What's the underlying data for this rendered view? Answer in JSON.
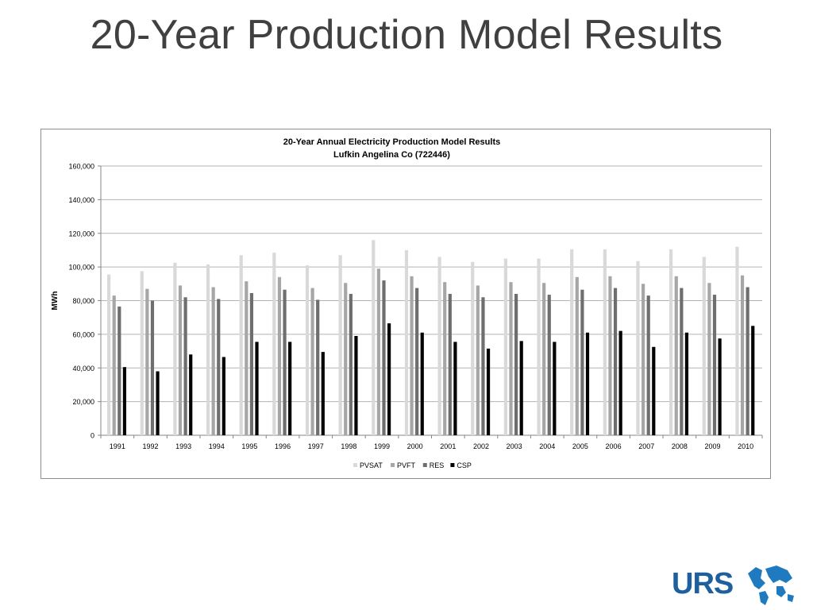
{
  "slide": {
    "title": "20-Year Production Model Results"
  },
  "logo": {
    "text": "URS",
    "color": "#1f5f9e"
  },
  "chart_data": {
    "type": "bar",
    "title": "20-Year Annual Electricity Production Model Results",
    "subtitle": "Lufkin Angelina Co (722446)",
    "xlabel": "",
    "ylabel": "MWh",
    "ylim": [
      0,
      160000
    ],
    "yticks": [
      0,
      20000,
      40000,
      60000,
      80000,
      100000,
      120000,
      140000,
      160000
    ],
    "ytick_labels": [
      "0",
      "20,000",
      "40,000",
      "60,000",
      "80,000",
      "100,000",
      "120,000",
      "140,000",
      "160,000"
    ],
    "grid": true,
    "legend_position": "bottom",
    "categories": [
      "1991",
      "1992",
      "1993",
      "1994",
      "1995",
      "1996",
      "1997",
      "1998",
      "1999",
      "2000",
      "2001",
      "2002",
      "2003",
      "2004",
      "2005",
      "2006",
      "2007",
      "2008",
      "2009",
      "2010"
    ],
    "series": [
      {
        "name": "PVSAT",
        "color": "#d9d9d9",
        "values": [
          95500,
          97500,
          102500,
          101500,
          107000,
          108500,
          101000,
          107000,
          116000,
          110000,
          106000,
          103000,
          105000,
          105000,
          110500,
          110500,
          103500,
          110500,
          106000,
          112000
        ]
      },
      {
        "name": "PVFT",
        "color": "#a6a6a6",
        "values": [
          83000,
          87000,
          89000,
          88000,
          91500,
          94000,
          87500,
          90500,
          99000,
          94500,
          91000,
          89000,
          91000,
          90500,
          94000,
          94500,
          90000,
          94500,
          90500,
          95000
        ]
      },
      {
        "name": "RES",
        "color": "#6e6e6e",
        "values": [
          76500,
          80000,
          82000,
          81000,
          84500,
          86500,
          80500,
          84000,
          92000,
          87500,
          84000,
          82000,
          84000,
          83500,
          86500,
          87500,
          83000,
          87500,
          83500,
          88000
        ]
      },
      {
        "name": "CSP",
        "color": "#000000",
        "values": [
          40500,
          38000,
          48000,
          46500,
          55500,
          55500,
          49500,
          59000,
          66500,
          61000,
          55500,
          51500,
          56000,
          55500,
          61000,
          62000,
          52500,
          61000,
          57500,
          65000
        ]
      }
    ]
  }
}
